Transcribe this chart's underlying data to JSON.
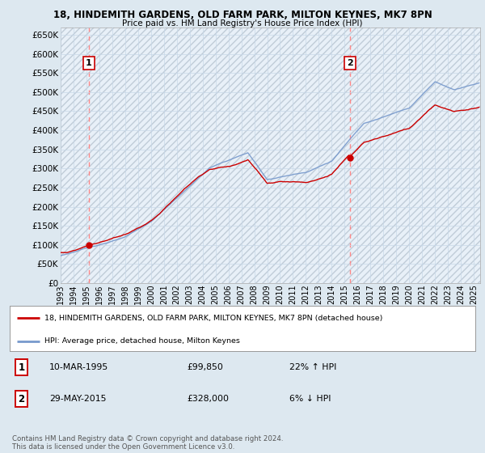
{
  "title_line1": "18, HINDEMITH GARDENS, OLD FARM PARK, MILTON KEYNES, MK7 8PN",
  "title_line2": "Price paid vs. HM Land Registry's House Price Index (HPI)",
  "ylim": [
    0,
    670000
  ],
  "yticks": [
    0,
    50000,
    100000,
    150000,
    200000,
    250000,
    300000,
    350000,
    400000,
    450000,
    500000,
    550000,
    600000,
    650000
  ],
  "ytick_labels": [
    "£0",
    "£50K",
    "£100K",
    "£150K",
    "£200K",
    "£250K",
    "£300K",
    "£350K",
    "£400K",
    "£450K",
    "£500K",
    "£550K",
    "£600K",
    "£650K"
  ],
  "sale1_date": 1995.19,
  "sale1_price": 99850,
  "sale2_date": 2015.41,
  "sale2_price": 328000,
  "line_color_red": "#cc0000",
  "line_color_blue": "#7799cc",
  "dot_color": "#cc0000",
  "vline_color": "#ff8888",
  "background_color": "#dde8f0",
  "plot_bg_color": "#e8f0f8",
  "grid_color": "#c8d8e8",
  "hatch_color": "#c0ccd8",
  "legend_label_red": "18, HINDEMITH GARDENS, OLD FARM PARK, MILTON KEYNES, MK7 8PN (detached house)",
  "legend_label_blue": "HPI: Average price, detached house, Milton Keynes",
  "footer": "Contains HM Land Registry data © Crown copyright and database right 2024.\nThis data is licensed under the Open Government Licence v3.0.",
  "xtick_years": [
    1993,
    1994,
    1995,
    1996,
    1997,
    1998,
    1999,
    2000,
    2001,
    2002,
    2003,
    2004,
    2005,
    2006,
    2007,
    2008,
    2009,
    2010,
    2011,
    2012,
    2013,
    2014,
    2015,
    2016,
    2017,
    2018,
    2019,
    2020,
    2021,
    2022,
    2023,
    2024,
    2025
  ],
  "t_start": 1993.0,
  "t_end": 2025.5
}
